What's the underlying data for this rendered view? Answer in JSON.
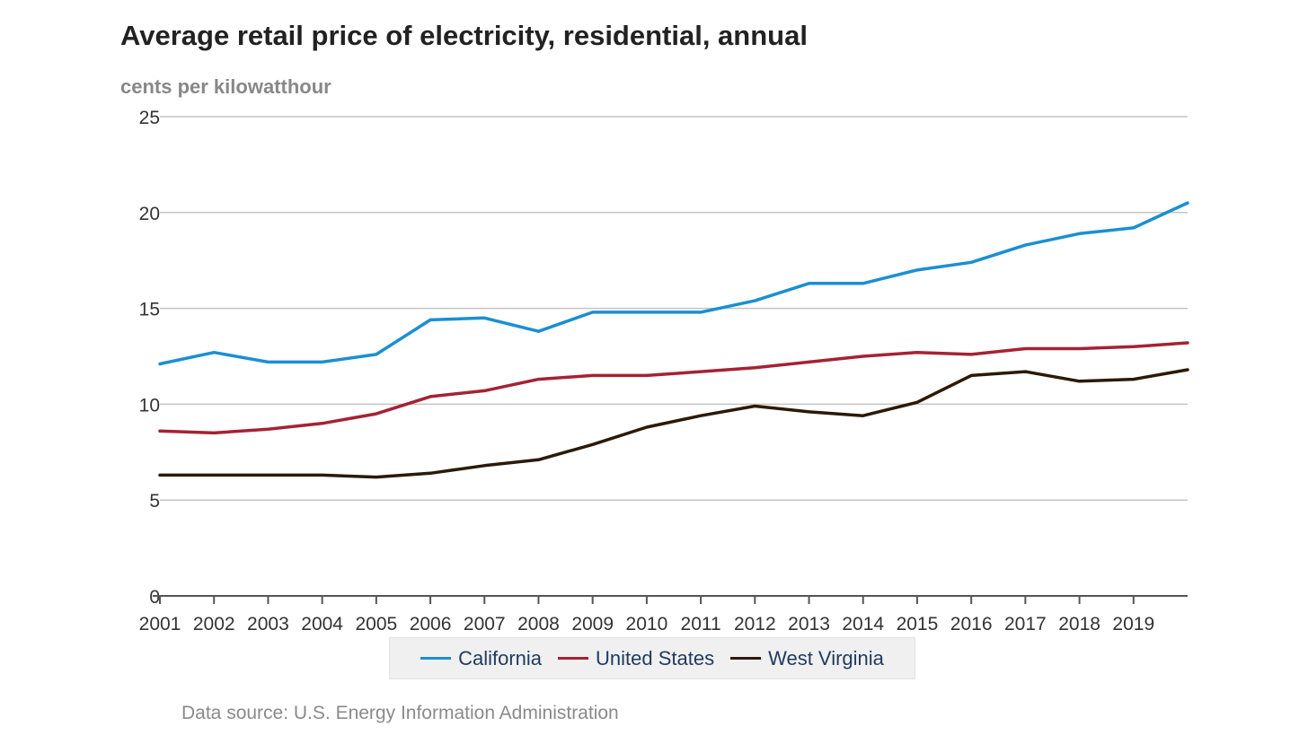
{
  "chart_data": {
    "type": "line",
    "title": "Average retail price of electricity, residential, annual",
    "subtitle": "cents per kilowatthour",
    "x": [
      2001,
      2002,
      2003,
      2004,
      2005,
      2006,
      2007,
      2008,
      2009,
      2010,
      2011,
      2012,
      2013,
      2014,
      2015,
      2016,
      2017,
      2018,
      2019,
      2020
    ],
    "x_tick_labels": [
      "2001",
      "2002",
      "2003",
      "2004",
      "2005",
      "2006",
      "2007",
      "2008",
      "2009",
      "2010",
      "2011",
      "2012",
      "2013",
      "2014",
      "2015",
      "2016",
      "2017",
      "2018",
      "2019"
    ],
    "y_ticks": [
      0,
      5,
      10,
      15,
      20,
      25
    ],
    "ylim": [
      0,
      25
    ],
    "grid": true,
    "legend_position": "bottom",
    "series": [
      {
        "name": "California",
        "color": "#1b8fd2",
        "values": [
          12.1,
          12.7,
          12.2,
          12.2,
          12.6,
          14.4,
          14.5,
          13.8,
          14.8,
          14.8,
          14.8,
          15.4,
          16.3,
          16.3,
          17.0,
          17.4,
          18.3,
          18.9,
          19.2,
          20.5
        ]
      },
      {
        "name": "United States",
        "color": "#a52234",
        "values": [
          8.6,
          8.5,
          8.7,
          9.0,
          9.5,
          10.4,
          10.7,
          11.3,
          11.5,
          11.5,
          11.7,
          11.9,
          12.2,
          12.5,
          12.7,
          12.6,
          12.9,
          12.9,
          13.0,
          13.2
        ]
      },
      {
        "name": "West Virginia",
        "color": "#2b1a08",
        "values": [
          6.3,
          6.3,
          6.3,
          6.3,
          6.2,
          6.4,
          6.8,
          7.1,
          7.9,
          8.8,
          9.4,
          9.9,
          9.6,
          9.4,
          10.1,
          11.5,
          11.7,
          11.2,
          11.3,
          11.8
        ]
      }
    ]
  },
  "footer": {
    "source": "Data source: U.S. Energy Information Administration"
  }
}
